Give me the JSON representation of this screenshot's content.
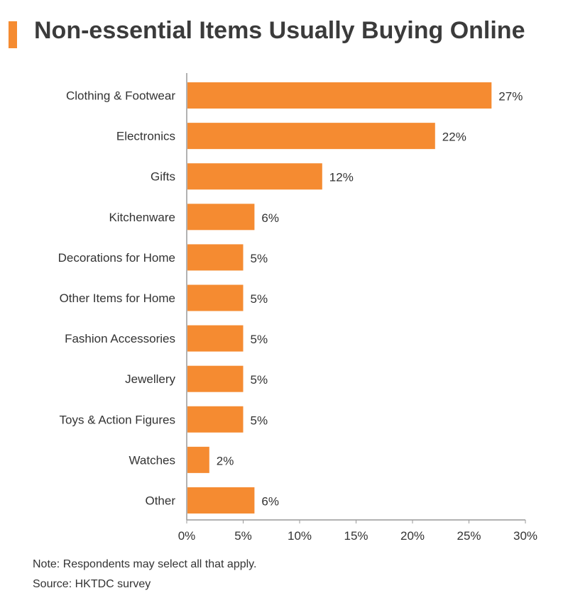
{
  "title": "Non-essential Items Usually Buying Online",
  "notes": {
    "note": "Note: Respondents may select all that apply.",
    "source": "Source: HKTDC survey"
  },
  "colors": {
    "bar": "#f58b31",
    "accent": "#f58b31",
    "axis": "#999999",
    "text": "#333333"
  },
  "chart_data": {
    "type": "bar",
    "orientation": "horizontal",
    "title": "Non-essential Items Usually Buying Online",
    "categories": [
      "Clothing & Footwear",
      "Electronics",
      "Gifts",
      "Kitchenware",
      "Decorations for Home",
      "Other Items for Home",
      "Fashion Accessories",
      "Jewellery",
      "Toys & Action Figures",
      "Watches",
      "Other"
    ],
    "values": [
      27,
      22,
      12,
      6,
      5,
      5,
      5,
      5,
      5,
      2,
      6
    ],
    "value_labels": [
      "27%",
      "22%",
      "12%",
      "6%",
      "5%",
      "5%",
      "5%",
      "5%",
      "5%",
      "2%",
      "6%"
    ],
    "xlim": [
      0,
      30
    ],
    "xticks": [
      0,
      5,
      10,
      15,
      20,
      25,
      30
    ],
    "xtick_labels": [
      "0%",
      "5%",
      "10%",
      "15%",
      "20%",
      "25%",
      "30%"
    ],
    "grid": false,
    "legend": "none"
  }
}
